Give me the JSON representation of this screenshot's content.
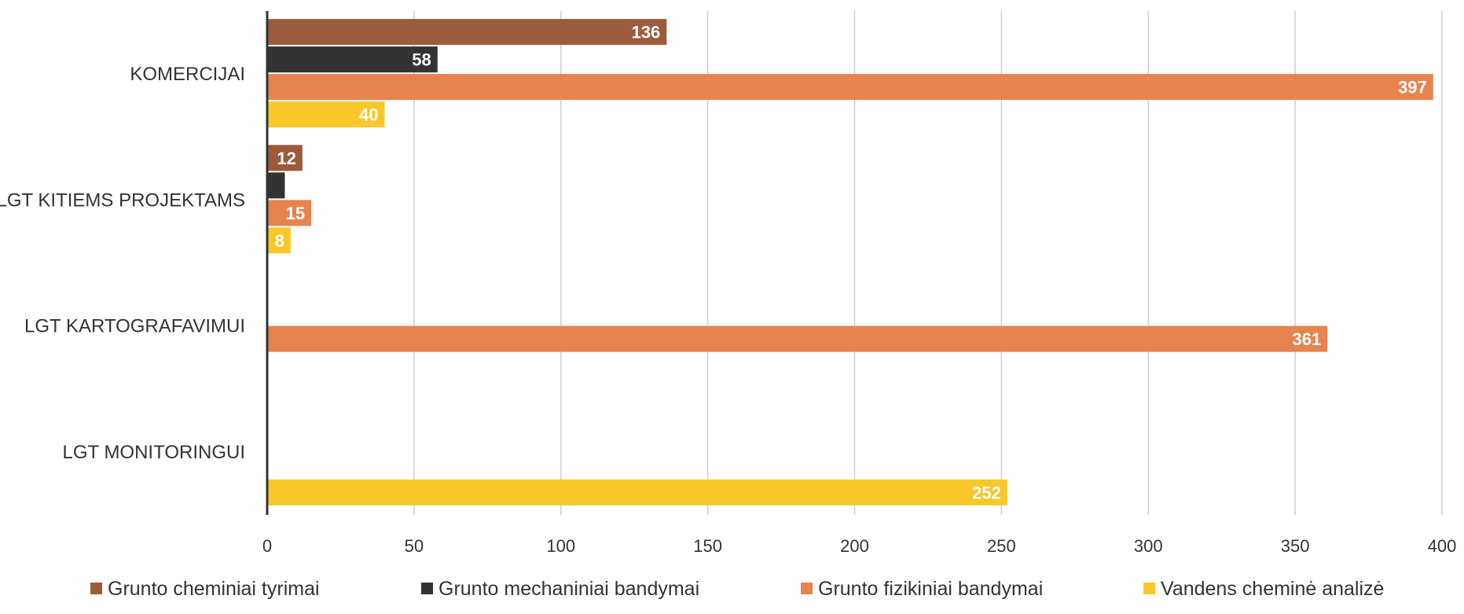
{
  "chart_data": {
    "type": "bar",
    "orientation": "horizontal",
    "categories": [
      "KOMERCIJAI",
      "LGT KITIEMS PROJEKTAMS",
      "LGT KARTOGRAFAVIMUI",
      "LGT MONITORINGUI"
    ],
    "series": [
      {
        "name": "Grunto cheminiai tyrimai",
        "color": "#9C5B3A",
        "values": [
          136,
          12,
          null,
          null
        ]
      },
      {
        "name": "Grunto mechaniniai bandymai",
        "color": "#333333",
        "values": [
          58,
          6,
          null,
          null
        ]
      },
      {
        "name": "Grunto fizikiniai bandymai",
        "color": "#E7834E",
        "values": [
          397,
          15,
          361,
          null
        ]
      },
      {
        "name": "Vandens cheminė analizė",
        "color": "#F8C72A",
        "values": [
          40,
          8,
          null,
          252
        ]
      }
    ],
    "data_labels": [
      [
        "136",
        "12",
        "",
        ""
      ],
      [
        "58",
        "",
        "",
        ""
      ],
      [
        "397",
        "15",
        "361",
        ""
      ],
      [
        "40",
        "8",
        "",
        "252"
      ]
    ],
    "x_ticks": [
      "0",
      "50",
      "100",
      "150",
      "200",
      "250",
      "300",
      "350",
      "400"
    ],
    "xlim": [
      0,
      400
    ],
    "grid": true,
    "legend_position": "bottom"
  }
}
